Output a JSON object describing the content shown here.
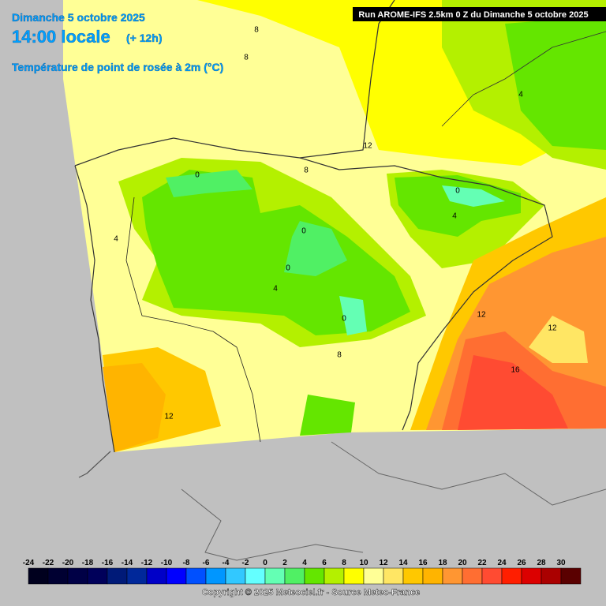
{
  "header": {
    "date": "Dimanche 5 octobre 2025",
    "time": "14:00 locale",
    "lead": "(+ 12h)",
    "parameter": "Température de point de rosée à 2m (°C)",
    "run": "Run AROME-IFS 2.5km 0 Z du Dimanche 5 octobre 2025"
  },
  "contour_labels": [
    8,
    8,
    12,
    8,
    0,
    4,
    0,
    4,
    4,
    0,
    0,
    4,
    0,
    8,
    12,
    12,
    16,
    12
  ],
  "legend": {
    "ticks": [
      -24,
      -22,
      -20,
      -18,
      -16,
      -14,
      -12,
      -10,
      -8,
      -6,
      -4,
      -2,
      0,
      2,
      4,
      6,
      8,
      10,
      12,
      14,
      16,
      18,
      20,
      22,
      24,
      26,
      28,
      30
    ],
    "colors": [
      "#00001e",
      "#000032",
      "#000046",
      "#00005a",
      "#001a78",
      "#00289a",
      "#0000c8",
      "#0000ff",
      "#0050ff",
      "#0096ff",
      "#32c8ff",
      "#64ffff",
      "#64ffb4",
      "#50f064",
      "#64e600",
      "#b4f000",
      "#ffff00",
      "#ffff96",
      "#ffe664",
      "#ffc800",
      "#ffb400",
      "#ff9632",
      "#ff6e32",
      "#ff4b32",
      "#ff1e00",
      "#dc0000",
      "#aa0000",
      "#5a0000"
    ]
  },
  "copyright": "Copyright © 2025 Meteociel.fr - Source Meteo-France"
}
